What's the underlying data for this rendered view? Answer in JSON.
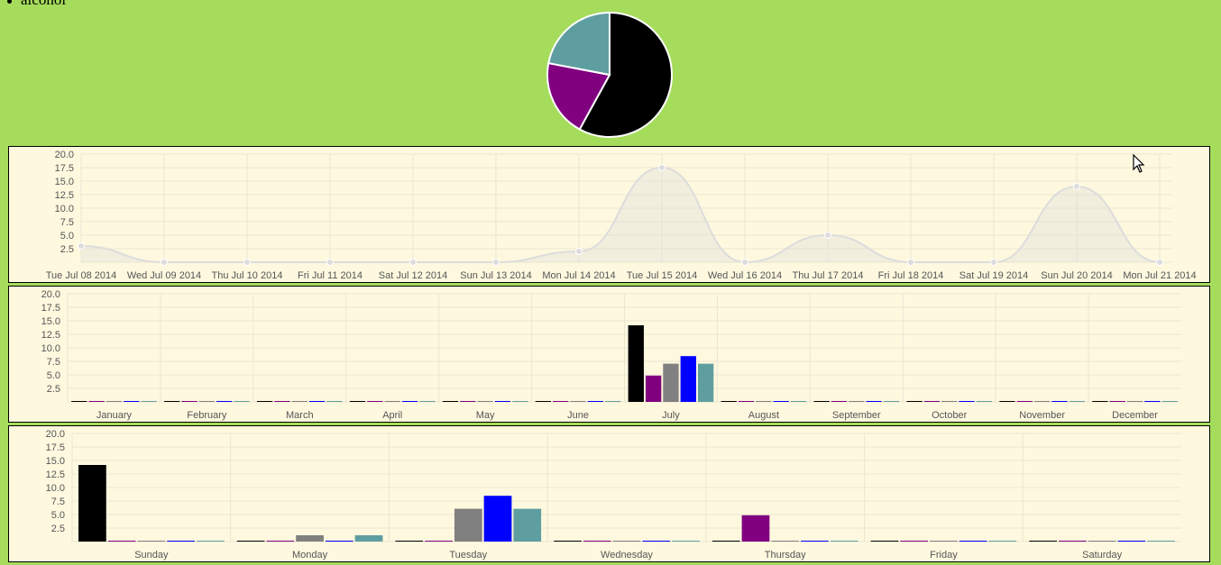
{
  "legend": {
    "label": "alcohol"
  },
  "colors": {
    "background": "#a6dc5c",
    "panel": "#fef8df",
    "series": [
      "#000000",
      "#800080",
      "#808080",
      "#0000ff",
      "#5f9ea0"
    ]
  },
  "chart_data": [
    {
      "type": "pie",
      "slices": [
        {
          "value": 58,
          "color": "#000000"
        },
        {
          "value": 20,
          "color": "#800080"
        },
        {
          "value": 22,
          "color": "#5f9ea0"
        }
      ]
    },
    {
      "type": "line",
      "categories": [
        "Tue Jul 08 2014",
        "Wed Jul 09 2014",
        "Thu Jul 10 2014",
        "Fri Jul 11 2014",
        "Sat Jul 12 2014",
        "Sun Jul 13 2014",
        "Mon Jul 14 2014",
        "Tue Jul 15 2014",
        "Wed Jul 16 2014",
        "Thu Jul 17 2014",
        "Fri Jul 18 2014",
        "Sat Jul 19 2014",
        "Sun Jul 20 2014",
        "Mon Jul 21 2014"
      ],
      "values": [
        3,
        0,
        0,
        0,
        0,
        0,
        2,
        17.5,
        0,
        5,
        0,
        0,
        14,
        0
      ],
      "ylim": [
        0,
        20
      ],
      "yticks": [
        "20.0",
        "17.5",
        "15.0",
        "12.5",
        "10.0",
        "7.5",
        "5.0",
        "2.5"
      ],
      "grid": true
    },
    {
      "type": "bar",
      "categories": [
        "January",
        "February",
        "March",
        "April",
        "May",
        "June",
        "July",
        "August",
        "September",
        "October",
        "November",
        "December"
      ],
      "series": [
        {
          "values": [
            0,
            0,
            0,
            0,
            0,
            0,
            14,
            0,
            0,
            0,
            0,
            0
          ]
        },
        {
          "values": [
            0,
            0,
            0,
            0,
            0,
            0,
            4.7,
            0,
            0,
            0,
            0,
            0
          ]
        },
        {
          "values": [
            0,
            0,
            0,
            0,
            0,
            0,
            6.9,
            0,
            0,
            0,
            0,
            0
          ]
        },
        {
          "values": [
            0,
            0,
            0,
            0,
            0,
            0,
            8.3,
            0,
            0,
            0,
            0,
            0
          ]
        },
        {
          "values": [
            0,
            0,
            0,
            0,
            0,
            0,
            6.9,
            0,
            0,
            0,
            0,
            0
          ]
        }
      ],
      "ylim": [
        0,
        20
      ],
      "yticks": [
        "20.0",
        "17.5",
        "15.0",
        "12.5",
        "10.0",
        "7.5",
        "5.0",
        "2.5"
      ],
      "grid": true
    },
    {
      "type": "bar",
      "categories": [
        "Sunday",
        "Monday",
        "Tuesday",
        "Wednesday",
        "Thursday",
        "Friday",
        "Saturday"
      ],
      "series": [
        {
          "values": [
            14,
            0,
            0,
            0,
            0,
            0,
            0
          ]
        },
        {
          "values": [
            0,
            0,
            0,
            0,
            4.7,
            0,
            0
          ]
        },
        {
          "values": [
            0,
            1,
            5.9,
            0,
            0,
            0,
            0
          ]
        },
        {
          "values": [
            0,
            0,
            8.3,
            0,
            0,
            0,
            0
          ]
        },
        {
          "values": [
            0,
            1,
            5.9,
            0,
            0,
            0,
            0
          ]
        }
      ],
      "ylim": [
        0,
        20
      ],
      "yticks": [
        "20.0",
        "17.5",
        "15.0",
        "12.5",
        "10.0",
        "7.5",
        "5.0",
        "2.5"
      ],
      "grid": true
    }
  ]
}
